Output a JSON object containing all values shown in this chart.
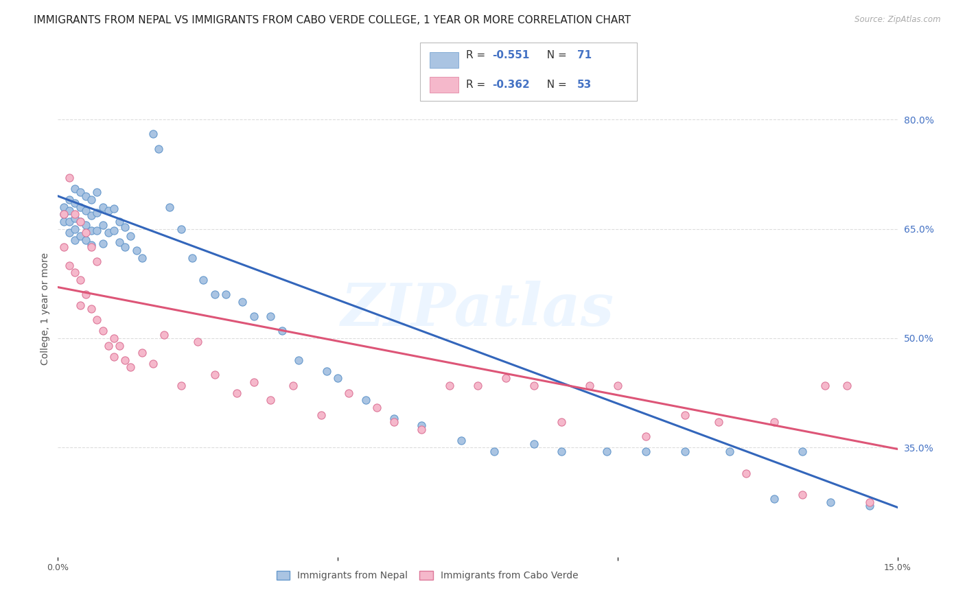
{
  "title": "IMMIGRANTS FROM NEPAL VS IMMIGRANTS FROM CABO VERDE COLLEGE, 1 YEAR OR MORE CORRELATION CHART",
  "source": "Source: ZipAtlas.com",
  "ylabel": "College, 1 year or more",
  "xlim": [
    0.0,
    0.15
  ],
  "ylim": [
    0.2,
    0.88
  ],
  "xtick_positions": [
    0.0,
    0.05,
    0.1,
    0.15
  ],
  "xticklabels": [
    "0.0%",
    "",
    "",
    "15.0%"
  ],
  "yticks_right": [
    0.35,
    0.5,
    0.65,
    0.8
  ],
  "yticklabels_right": [
    "35.0%",
    "50.0%",
    "65.0%",
    "80.0%"
  ],
  "nepal_color": "#aac4e2",
  "nepal_edge_color": "#6699cc",
  "cabo_color": "#f5b8cb",
  "cabo_edge_color": "#dd7799",
  "nepal_line_color": "#3366bb",
  "cabo_line_color": "#dd5577",
  "legend_R1_val": "-0.551",
  "legend_N1_val": "71",
  "legend_R2_val": "-0.362",
  "legend_N2_val": "53",
  "watermark": "ZIPatlas",
  "nepal_x": [
    0.001,
    0.001,
    0.001,
    0.002,
    0.002,
    0.002,
    0.002,
    0.003,
    0.003,
    0.003,
    0.003,
    0.003,
    0.004,
    0.004,
    0.004,
    0.004,
    0.005,
    0.005,
    0.005,
    0.005,
    0.006,
    0.006,
    0.006,
    0.006,
    0.007,
    0.007,
    0.007,
    0.008,
    0.008,
    0.008,
    0.009,
    0.009,
    0.01,
    0.01,
    0.011,
    0.011,
    0.012,
    0.012,
    0.013,
    0.014,
    0.015,
    0.017,
    0.018,
    0.02,
    0.022,
    0.024,
    0.026,
    0.028,
    0.03,
    0.033,
    0.035,
    0.038,
    0.04,
    0.043,
    0.048,
    0.05,
    0.055,
    0.06,
    0.065,
    0.072,
    0.078,
    0.085,
    0.09,
    0.098,
    0.105,
    0.112,
    0.12,
    0.128,
    0.133,
    0.138,
    0.145
  ],
  "nepal_y": [
    0.68,
    0.67,
    0.66,
    0.69,
    0.675,
    0.66,
    0.645,
    0.705,
    0.685,
    0.665,
    0.65,
    0.635,
    0.7,
    0.68,
    0.66,
    0.64,
    0.695,
    0.675,
    0.655,
    0.635,
    0.69,
    0.668,
    0.648,
    0.628,
    0.7,
    0.672,
    0.648,
    0.68,
    0.655,
    0.63,
    0.675,
    0.645,
    0.678,
    0.648,
    0.66,
    0.632,
    0.652,
    0.625,
    0.64,
    0.62,
    0.61,
    0.78,
    0.76,
    0.68,
    0.65,
    0.61,
    0.58,
    0.56,
    0.56,
    0.55,
    0.53,
    0.53,
    0.51,
    0.47,
    0.455,
    0.445,
    0.415,
    0.39,
    0.38,
    0.36,
    0.345,
    0.355,
    0.345,
    0.345,
    0.345,
    0.345,
    0.345,
    0.28,
    0.345,
    0.275,
    0.27
  ],
  "cabo_x": [
    0.001,
    0.001,
    0.002,
    0.002,
    0.003,
    0.003,
    0.004,
    0.004,
    0.004,
    0.005,
    0.005,
    0.006,
    0.006,
    0.007,
    0.007,
    0.008,
    0.009,
    0.01,
    0.01,
    0.011,
    0.012,
    0.013,
    0.015,
    0.017,
    0.019,
    0.022,
    0.025,
    0.028,
    0.032,
    0.035,
    0.038,
    0.042,
    0.047,
    0.052,
    0.057,
    0.06,
    0.065,
    0.07,
    0.075,
    0.08,
    0.085,
    0.09,
    0.095,
    0.1,
    0.105,
    0.112,
    0.118,
    0.123,
    0.128,
    0.133,
    0.137,
    0.141,
    0.145
  ],
  "cabo_y": [
    0.67,
    0.625,
    0.72,
    0.6,
    0.67,
    0.59,
    0.66,
    0.58,
    0.545,
    0.645,
    0.56,
    0.625,
    0.54,
    0.605,
    0.525,
    0.51,
    0.49,
    0.5,
    0.475,
    0.49,
    0.47,
    0.46,
    0.48,
    0.465,
    0.505,
    0.435,
    0.495,
    0.45,
    0.425,
    0.44,
    0.415,
    0.435,
    0.395,
    0.425,
    0.405,
    0.385,
    0.375,
    0.435,
    0.435,
    0.445,
    0.435,
    0.385,
    0.435,
    0.435,
    0.365,
    0.395,
    0.385,
    0.315,
    0.385,
    0.285,
    0.435,
    0.435,
    0.275
  ],
  "nepal_line_x": [
    0.0,
    0.15
  ],
  "nepal_line_y": [
    0.695,
    0.268
  ],
  "cabo_line_x": [
    0.0,
    0.15
  ],
  "cabo_line_y": [
    0.57,
    0.348
  ],
  "background_color": "#ffffff",
  "grid_color": "#dddddd",
  "title_fontsize": 11,
  "axis_label_fontsize": 10,
  "tick_fontsize": 9,
  "marker_size": 65
}
